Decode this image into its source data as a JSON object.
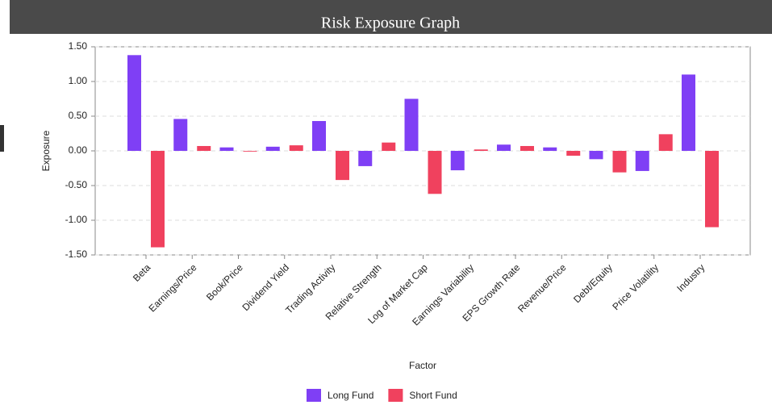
{
  "chart_data": {
    "type": "bar",
    "title": "Risk Exposure Graph",
    "x_label": "Factor",
    "y_label": "Exposure",
    "categories": [
      "Beta",
      "Earnings/Price",
      "Book/Price",
      "Dividend Yield",
      "Trading Activity",
      "Relative Strength",
      "Log of Market Cap",
      "Earnings Variability",
      "EPS Growth Rate",
      "Revenue/Price",
      "Debt/Equity",
      "Price Volatility",
      "Industry"
    ],
    "series": [
      {
        "name": "Long Fund",
        "color": "#7f3ff5",
        "values": [
          1.38,
          0.46,
          0.05,
          0.06,
          0.43,
          -0.22,
          0.75,
          -0.28,
          0.09,
          0.05,
          -0.12,
          -0.29,
          1.1
        ]
      },
      {
        "name": "Short Fund",
        "color": "#f0415e",
        "values": [
          -1.39,
          0.07,
          -0.01,
          0.08,
          -0.42,
          0.12,
          -0.62,
          0.02,
          0.07,
          -0.07,
          -0.31,
          0.24,
          -1.1
        ]
      }
    ],
    "ylim": [
      -1.5,
      1.5
    ],
    "yticks": [
      {
        "value": -1.5,
        "label": "-1.50"
      },
      {
        "value": -1,
        "label": "-1.00"
      },
      {
        "value": -0.5,
        "label": "-0.50"
      },
      {
        "value": 0,
        "label": "0.00"
      },
      {
        "value": 0.5,
        "label": "0.50"
      },
      {
        "value": 1,
        "label": "1.00"
      },
      {
        "value": 1.5,
        "label": "1.50"
      }
    ],
    "grid": true,
    "legend": "bottom"
  }
}
